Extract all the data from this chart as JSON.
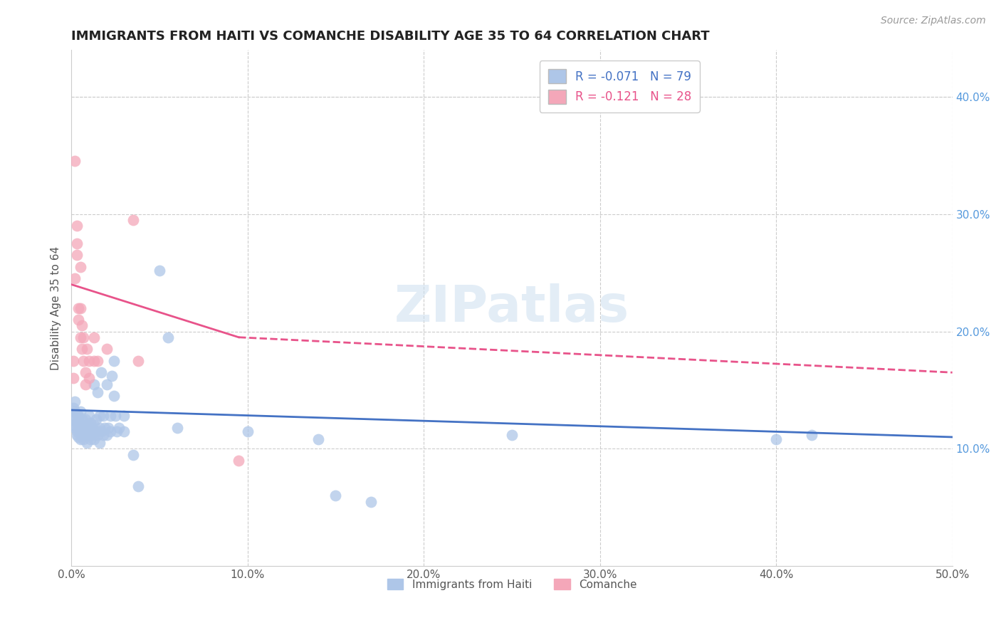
{
  "title": "IMMIGRANTS FROM HAITI VS COMANCHE DISABILITY AGE 35 TO 64 CORRELATION CHART",
  "source": "Source: ZipAtlas.com",
  "ylabel": "Disability Age 35 to 64",
  "xlim": [
    0.0,
    0.5
  ],
  "ylim": [
    0.0,
    0.44
  ],
  "xticks": [
    0.0,
    0.1,
    0.2,
    0.3,
    0.4,
    0.5
  ],
  "xticklabels": [
    "0.0%",
    "10.0%",
    "20.0%",
    "30.0%",
    "40.0%",
    "50.0%"
  ],
  "yticks_right": [
    0.1,
    0.2,
    0.3,
    0.4
  ],
  "yticklabels_right": [
    "10.0%",
    "20.0%",
    "30.0%",
    "40.0%"
  ],
  "legend_haiti": "R = -0.071   N = 79",
  "legend_comanche": "R = -0.121   N = 28",
  "haiti_color": "#aec6e8",
  "comanche_color": "#f4a7b9",
  "haiti_line_color": "#4472c4",
  "comanche_line_color": "#e8538a",
  "watermark": "ZIPatlas",
  "haiti_r": -0.071,
  "haiti_n": 79,
  "comanche_r": -0.121,
  "comanche_n": 28,
  "haiti_line": [
    0.0,
    0.133,
    0.5,
    0.11
  ],
  "comanche_line_solid": [
    0.0,
    0.24,
    0.095,
    0.195
  ],
  "comanche_line_dashed": [
    0.095,
    0.195,
    0.5,
    0.165
  ],
  "haiti_points": [
    [
      0.001,
      0.135
    ],
    [
      0.001,
      0.128
    ],
    [
      0.001,
      0.12
    ],
    [
      0.002,
      0.132
    ],
    [
      0.002,
      0.118
    ],
    [
      0.002,
      0.125
    ],
    [
      0.002,
      0.14
    ],
    [
      0.003,
      0.115
    ],
    [
      0.003,
      0.122
    ],
    [
      0.003,
      0.13
    ],
    [
      0.003,
      0.112
    ],
    [
      0.004,
      0.118
    ],
    [
      0.004,
      0.125
    ],
    [
      0.004,
      0.11
    ],
    [
      0.004,
      0.128
    ],
    [
      0.005,
      0.12
    ],
    [
      0.005,
      0.115
    ],
    [
      0.005,
      0.132
    ],
    [
      0.005,
      0.108
    ],
    [
      0.006,
      0.118
    ],
    [
      0.006,
      0.125
    ],
    [
      0.006,
      0.112
    ],
    [
      0.007,
      0.12
    ],
    [
      0.007,
      0.115
    ],
    [
      0.007,
      0.108
    ],
    [
      0.008,
      0.118
    ],
    [
      0.008,
      0.112
    ],
    [
      0.008,
      0.125
    ],
    [
      0.009,
      0.115
    ],
    [
      0.009,
      0.105
    ],
    [
      0.009,
      0.12
    ],
    [
      0.01,
      0.118
    ],
    [
      0.01,
      0.112
    ],
    [
      0.01,
      0.128
    ],
    [
      0.011,
      0.115
    ],
    [
      0.011,
      0.108
    ],
    [
      0.011,
      0.122
    ],
    [
      0.012,
      0.118
    ],
    [
      0.012,
      0.112
    ],
    [
      0.013,
      0.155
    ],
    [
      0.013,
      0.12
    ],
    [
      0.013,
      0.108
    ],
    [
      0.014,
      0.115
    ],
    [
      0.014,
      0.125
    ],
    [
      0.015,
      0.148
    ],
    [
      0.015,
      0.112
    ],
    [
      0.016,
      0.118
    ],
    [
      0.016,
      0.128
    ],
    [
      0.016,
      0.105
    ],
    [
      0.017,
      0.165
    ],
    [
      0.017,
      0.115
    ],
    [
      0.018,
      0.128
    ],
    [
      0.018,
      0.112
    ],
    [
      0.019,
      0.118
    ],
    [
      0.02,
      0.155
    ],
    [
      0.02,
      0.112
    ],
    [
      0.021,
      0.118
    ],
    [
      0.022,
      0.128
    ],
    [
      0.022,
      0.115
    ],
    [
      0.023,
      0.162
    ],
    [
      0.024,
      0.175
    ],
    [
      0.024,
      0.145
    ],
    [
      0.025,
      0.128
    ],
    [
      0.026,
      0.115
    ],
    [
      0.027,
      0.118
    ],
    [
      0.03,
      0.128
    ],
    [
      0.03,
      0.115
    ],
    [
      0.035,
      0.095
    ],
    [
      0.038,
      0.068
    ],
    [
      0.05,
      0.252
    ],
    [
      0.055,
      0.195
    ],
    [
      0.06,
      0.118
    ],
    [
      0.1,
      0.115
    ],
    [
      0.14,
      0.108
    ],
    [
      0.15,
      0.06
    ],
    [
      0.17,
      0.055
    ],
    [
      0.25,
      0.112
    ],
    [
      0.4,
      0.108
    ],
    [
      0.42,
      0.112
    ]
  ],
  "comanche_points": [
    [
      0.001,
      0.16
    ],
    [
      0.001,
      0.175
    ],
    [
      0.002,
      0.245
    ],
    [
      0.002,
      0.345
    ],
    [
      0.003,
      0.29
    ],
    [
      0.003,
      0.275
    ],
    [
      0.003,
      0.265
    ],
    [
      0.004,
      0.22
    ],
    [
      0.004,
      0.21
    ],
    [
      0.005,
      0.255
    ],
    [
      0.005,
      0.22
    ],
    [
      0.005,
      0.195
    ],
    [
      0.006,
      0.205
    ],
    [
      0.006,
      0.185
    ],
    [
      0.007,
      0.195
    ],
    [
      0.007,
      0.175
    ],
    [
      0.008,
      0.165
    ],
    [
      0.008,
      0.155
    ],
    [
      0.009,
      0.185
    ],
    [
      0.01,
      0.175
    ],
    [
      0.01,
      0.16
    ],
    [
      0.013,
      0.195
    ],
    [
      0.013,
      0.175
    ],
    [
      0.015,
      0.175
    ],
    [
      0.02,
      0.185
    ],
    [
      0.035,
      0.295
    ],
    [
      0.038,
      0.175
    ],
    [
      0.095,
      0.09
    ]
  ]
}
